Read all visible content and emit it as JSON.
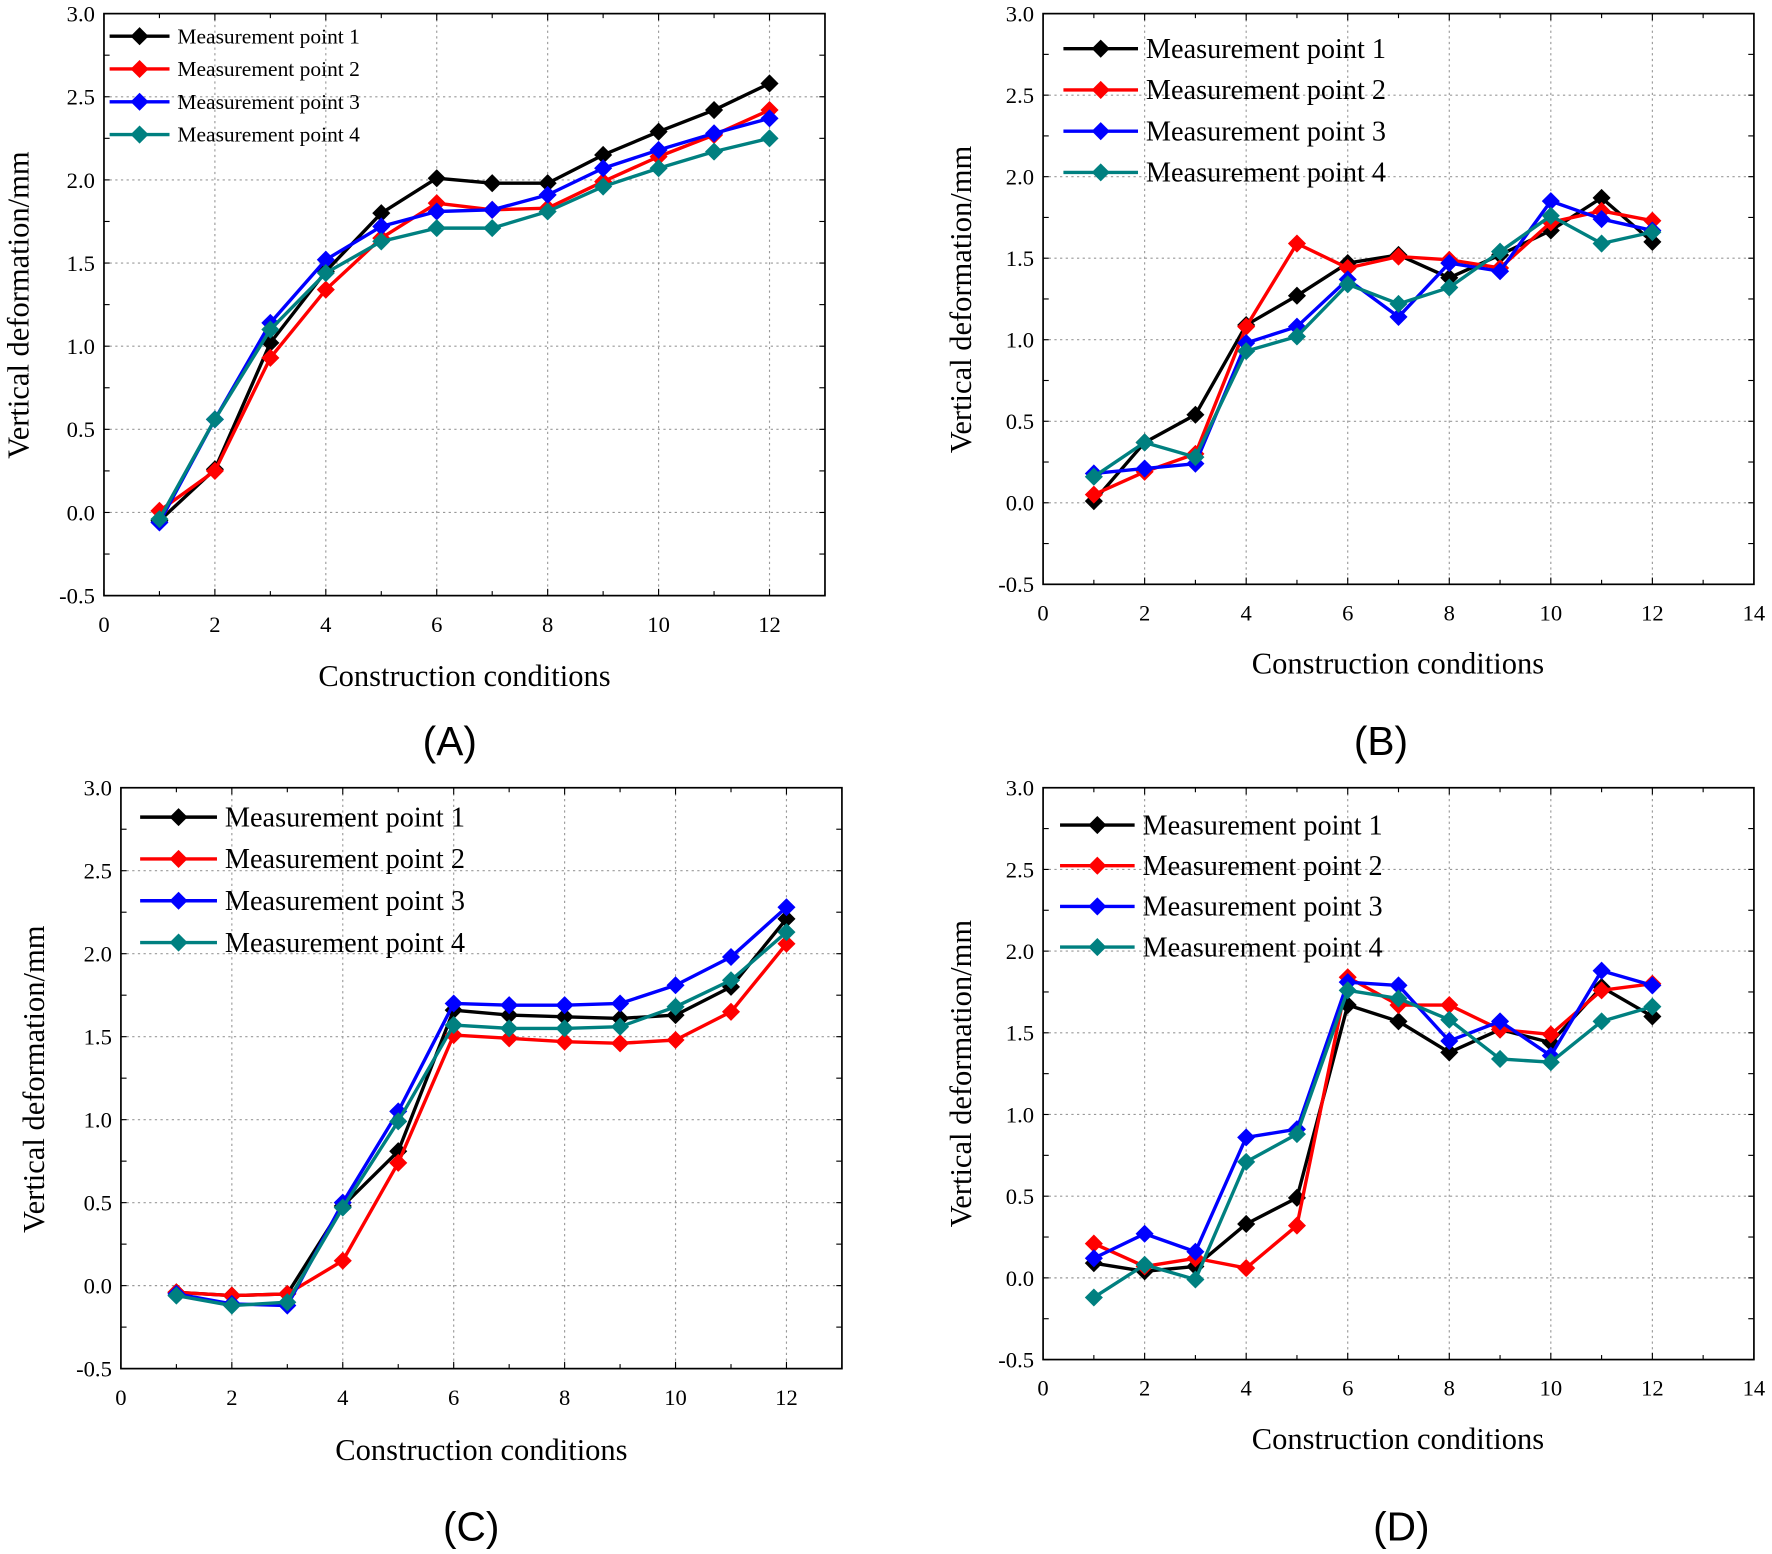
{
  "chart_data": [
    {
      "type": "line",
      "panel_label": "(A)",
      "xlabel": "Construction conditions",
      "ylabel": "Vertical deformation/mm",
      "xlim": [
        0,
        13
      ],
      "ylim": [
        -0.5,
        3.0
      ],
      "xticks": [
        0,
        2,
        4,
        6,
        8,
        10,
        12
      ],
      "yticks": [
        "-0.5",
        "0.0",
        "0.5",
        "1.0",
        "1.5",
        "2.0",
        "2.5",
        "3.0"
      ],
      "grid": true,
      "legend_position": "top-left",
      "x": [
        1,
        2,
        3,
        4,
        5,
        6,
        7,
        8,
        9,
        10,
        11,
        12
      ],
      "series": [
        {
          "name": "Measurement point 1",
          "color": "#000000",
          "values": [
            -0.05,
            0.26,
            1.02,
            1.45,
            1.8,
            2.01,
            1.98,
            1.98,
            2.15,
            2.29,
            2.42,
            2.58
          ]
        },
        {
          "name": "Measurement point 2",
          "color": "#ff0000",
          "values": [
            0.01,
            0.25,
            0.93,
            1.34,
            1.65,
            1.86,
            1.82,
            1.83,
            1.99,
            2.14,
            2.27,
            2.42
          ]
        },
        {
          "name": "Measurement point 3",
          "color": "#0000ff",
          "values": [
            -0.06,
            0.56,
            1.14,
            1.52,
            1.72,
            1.81,
            1.82,
            1.91,
            2.07,
            2.18,
            2.28,
            2.37
          ]
        },
        {
          "name": "Measurement point 4",
          "color": "#008080",
          "values": [
            -0.04,
            0.56,
            1.1,
            1.44,
            1.63,
            1.71,
            1.71,
            1.81,
            1.96,
            2.07,
            2.17,
            2.25
          ]
        }
      ]
    },
    {
      "type": "line",
      "panel_label": "(B)",
      "xlabel": "Construction conditions",
      "ylabel": "Vertical deformation/mm",
      "xlim": [
        0,
        14
      ],
      "ylim": [
        -0.5,
        3.0
      ],
      "xticks": [
        0,
        2,
        4,
        6,
        8,
        10,
        12,
        14
      ],
      "yticks": [
        "-0.5",
        "0.0",
        "0.5",
        "1.0",
        "1.5",
        "2.0",
        "2.5",
        "3.0"
      ],
      "grid": true,
      "legend_position": "top-left",
      "x": [
        1,
        2,
        3,
        4,
        5,
        6,
        7,
        8,
        9,
        10,
        11,
        12
      ],
      "series": [
        {
          "name": "Measurement point 1",
          "color": "#000000",
          "values": [
            0.01,
            0.37,
            0.54,
            1.09,
            1.27,
            1.47,
            1.52,
            1.38,
            1.52,
            1.67,
            1.87,
            1.6
          ]
        },
        {
          "name": "Measurement point 2",
          "color": "#ff0000",
          "values": [
            0.05,
            0.19,
            0.3,
            1.08,
            1.59,
            1.44,
            1.51,
            1.49,
            1.44,
            1.72,
            1.79,
            1.73
          ]
        },
        {
          "name": "Measurement point 3",
          "color": "#0000ff",
          "values": [
            0.18,
            0.21,
            0.24,
            0.98,
            1.08,
            1.37,
            1.14,
            1.47,
            1.42,
            1.85,
            1.74,
            1.67
          ]
        },
        {
          "name": "Measurement point 4",
          "color": "#008080",
          "values": [
            0.16,
            0.37,
            0.28,
            0.93,
            1.02,
            1.34,
            1.22,
            1.32,
            1.54,
            1.76,
            1.59,
            1.66
          ]
        }
      ]
    },
    {
      "type": "line",
      "panel_label": "(C)",
      "xlabel": "Construction conditions",
      "ylabel": "Vertical deformation/mm",
      "xlim": [
        0,
        13
      ],
      "ylim": [
        -0.5,
        3.0
      ],
      "xticks": [
        0,
        2,
        4,
        6,
        8,
        10,
        12
      ],
      "yticks": [
        "-0.5",
        "0.0",
        "0.5",
        "1.0",
        "1.5",
        "2.0",
        "2.5",
        "3.0"
      ],
      "grid": true,
      "legend_position": "top-left",
      "x": [
        1,
        2,
        3,
        4,
        5,
        6,
        7,
        8,
        9,
        10,
        11,
        12
      ],
      "series": [
        {
          "name": "Measurement point 1",
          "color": "#000000",
          "values": [
            -0.04,
            -0.06,
            -0.05,
            0.48,
            0.81,
            1.66,
            1.63,
            1.62,
            1.61,
            1.63,
            1.8,
            2.21
          ]
        },
        {
          "name": "Measurement point 2",
          "color": "#ff0000",
          "values": [
            -0.04,
            -0.06,
            -0.05,
            0.15,
            0.74,
            1.51,
            1.49,
            1.47,
            1.46,
            1.48,
            1.65,
            2.06
          ]
        },
        {
          "name": "Measurement point 3",
          "color": "#0000ff",
          "values": [
            -0.05,
            -0.11,
            -0.12,
            0.5,
            1.05,
            1.7,
            1.69,
            1.69,
            1.7,
            1.81,
            1.98,
            2.28
          ]
        },
        {
          "name": "Measurement point 4",
          "color": "#008080",
          "values": [
            -0.06,
            -0.12,
            -0.1,
            0.47,
            0.99,
            1.57,
            1.55,
            1.55,
            1.56,
            1.68,
            1.84,
            2.13
          ]
        }
      ]
    },
    {
      "type": "line",
      "panel_label": "(D)",
      "xlabel": "Construction conditions",
      "ylabel": "Vertical deformation/mm",
      "xlim": [
        0,
        14
      ],
      "ylim": [
        -0.5,
        3.0
      ],
      "xticks": [
        0,
        2,
        4,
        6,
        8,
        10,
        12,
        14
      ],
      "yticks": [
        "-0.5",
        "0.0",
        "0.5",
        "1.0",
        "1.5",
        "2.0",
        "2.5",
        "3.0"
      ],
      "grid": true,
      "legend_position": "top-left",
      "x": [
        1,
        2,
        3,
        4,
        5,
        6,
        7,
        8,
        9,
        10,
        11,
        12
      ],
      "series": [
        {
          "name": "Measurement point 1",
          "color": "#000000",
          "values": [
            0.09,
            0.04,
            0.07,
            0.33,
            0.49,
            1.67,
            1.57,
            1.38,
            1.52,
            1.44,
            1.78,
            1.6
          ]
        },
        {
          "name": "Measurement point 2",
          "color": "#ff0000",
          "values": [
            0.21,
            0.07,
            0.12,
            0.06,
            0.32,
            1.84,
            1.67,
            1.67,
            1.52,
            1.49,
            1.76,
            1.8
          ]
        },
        {
          "name": "Measurement point 3",
          "color": "#0000ff",
          "values": [
            0.12,
            0.27,
            0.16,
            0.86,
            0.91,
            1.81,
            1.79,
            1.45,
            1.57,
            1.36,
            1.88,
            1.79
          ]
        },
        {
          "name": "Measurement point 4",
          "color": "#008080",
          "values": [
            -0.12,
            0.08,
            -0.01,
            0.71,
            0.88,
            1.76,
            1.71,
            1.58,
            1.34,
            1.32,
            1.57,
            1.66
          ]
        }
      ]
    }
  ]
}
